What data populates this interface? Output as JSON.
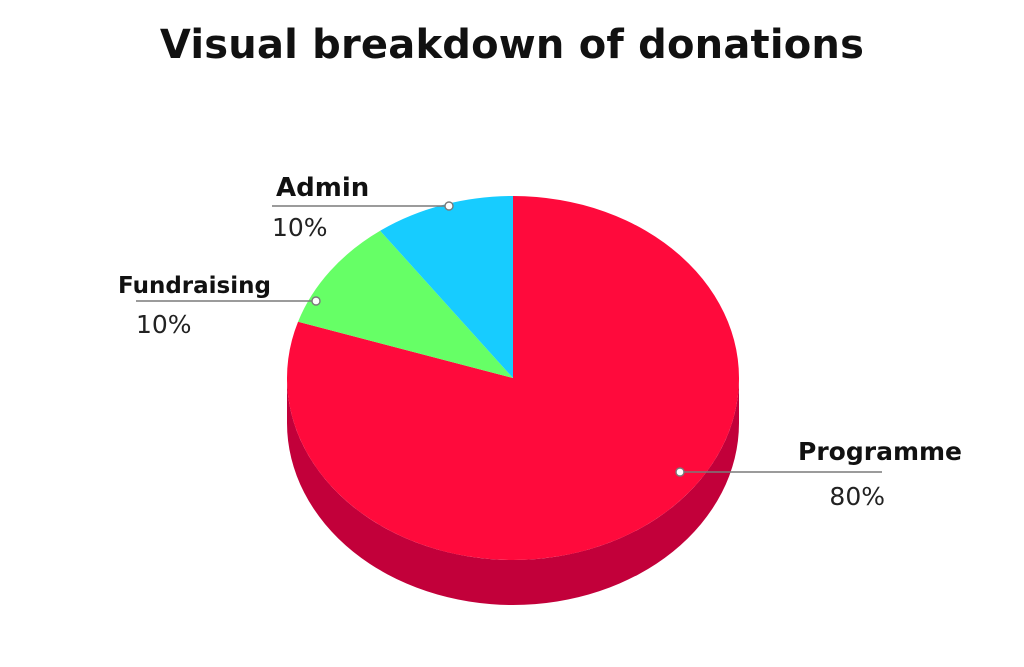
{
  "chart_data": {
    "type": "pie",
    "title": "Visual breakdown of donations",
    "start_angle_deg": -90,
    "slices": [
      {
        "label": "Programme",
        "value": 80,
        "display": "80%",
        "color": "#FF0A3C",
        "side_color": "#C2003A"
      },
      {
        "label": "Fundraising",
        "value": 10,
        "display": "10%",
        "color": "#66FF66",
        "side_color": "#3FC23F"
      },
      {
        "label": "Admin",
        "value": 10,
        "display": "10%",
        "color": "#17CCFF",
        "side_color": "#0E9FC6"
      }
    ],
    "leader_line_color": "#7A7A7A"
  }
}
